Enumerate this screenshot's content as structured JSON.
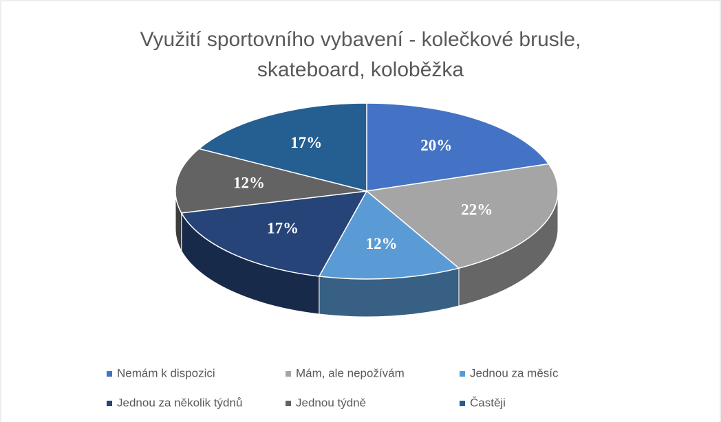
{
  "chart_data": {
    "type": "pie",
    "three_d": true,
    "title": "Využití sportovního vybavení - kolečkové brusle, skateboard, koloběžka",
    "categories": [
      "Nemám k dispozici",
      "Mám, ale nepožívám",
      "Jednou za měsíc",
      "Jednou za několik týdnů",
      "Jednou týdně",
      "Častěji"
    ],
    "values": [
      20,
      22,
      12,
      17,
      12,
      17
    ],
    "value_labels": [
      "20%",
      "22%",
      "12%",
      "17%",
      "12%",
      "17%"
    ],
    "colors": [
      "#4472c4",
      "#a5a5a5",
      "#5b9bd5",
      "#264478",
      "#636363",
      "#255e91"
    ],
    "legend": "bottom"
  }
}
